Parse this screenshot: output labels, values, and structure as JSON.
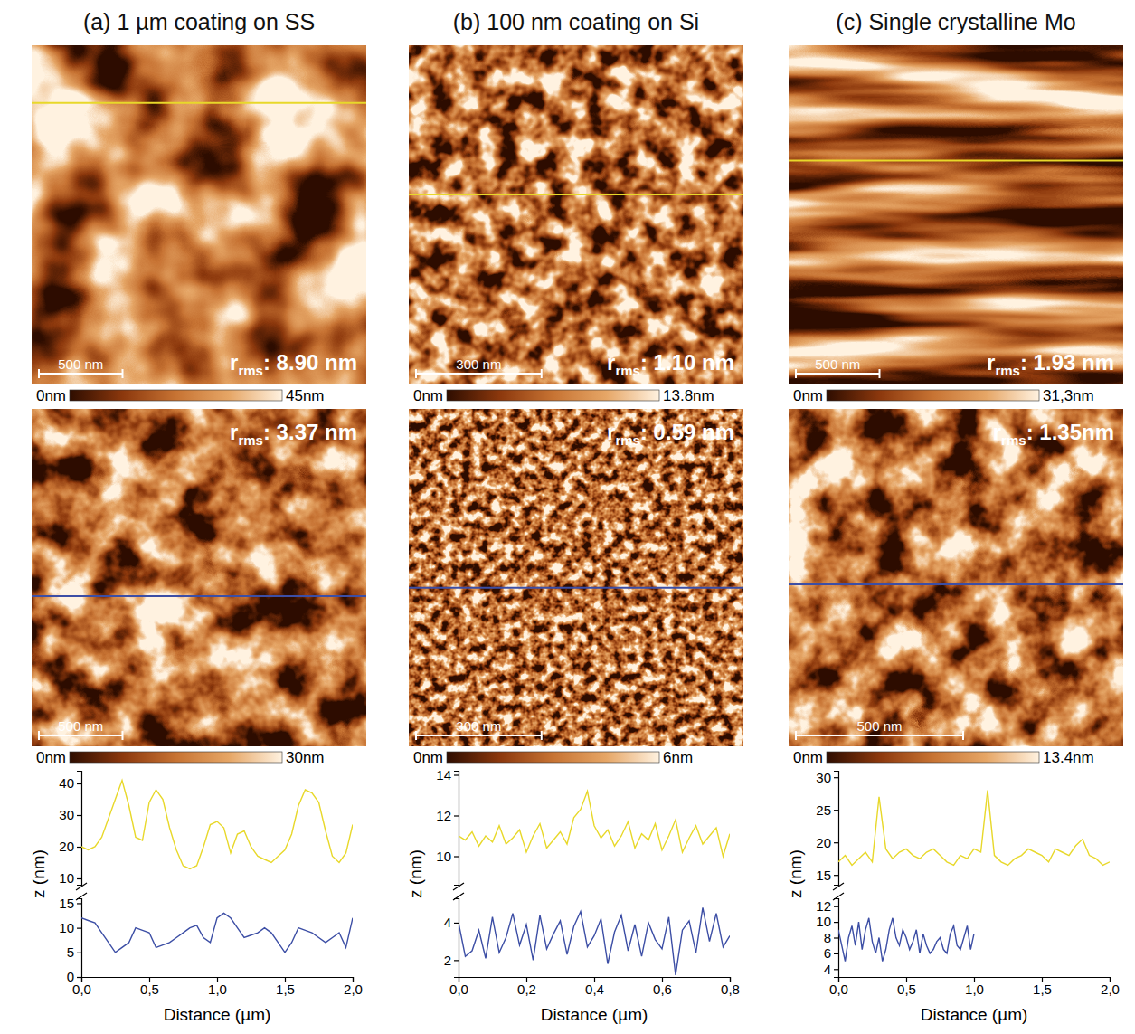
{
  "chart_data": [
    {
      "type": "line",
      "title": "(a) 1 µm coating on SS",
      "images": [
        {
          "xlim": [
            0,
            2000
          ],
          "scale_bar": {
            "value": 500,
            "label": "500 nm"
          },
          "rms_symbol": "r",
          "rms_subscript": "rms",
          "rms_text": ": 8.90 nm",
          "colorbar": {
            "range": [
              0,
              45
            ],
            "ticks": [
              {
                "value": 0,
                "label": "0nm"
              },
              {
                "value": 45,
                "label": "45nm"
              }
            ]
          }
        },
        {
          "xlim": [
            0,
            2000
          ],
          "scale_bar": {
            "value": 500,
            "label": "500 nm"
          },
          "rms_symbol": "r",
          "rms_subscript": "rms",
          "rms_text": ": 3.37 nm",
          "colorbar": {
            "range": [
              0,
              30
            ],
            "ticks": [
              {
                "value": 0,
                "label": "0nm"
              },
              {
                "value": 30,
                "label": "30nm"
              }
            ]
          }
        }
      ],
      "x_label": "Distance (µm)",
      "y_label": "z (nm)",
      "xlim": [
        0,
        2
      ],
      "xticks": [
        {
          "value": 0,
          "label": "0,0"
        },
        {
          "value": 0.5,
          "label": "0,5"
        },
        {
          "value": 1,
          "label": "1,0"
        },
        {
          "value": 1.5,
          "label": "1,5"
        },
        {
          "value": 2,
          "label": "2,0"
        }
      ],
      "ylim": [
        0,
        16
      ],
      "yticks": [
        0,
        5,
        10,
        15
      ],
      "y2lim": [
        8,
        44
      ],
      "y2ticks": [
        10,
        20,
        30,
        40
      ],
      "series": [
        {
          "color": "#e8d82a",
          "axis": "y2",
          "x": [
            0,
            0.05,
            0.1,
            0.15,
            0.2,
            0.25,
            0.3,
            0.35,
            0.4,
            0.45,
            0.5,
            0.55,
            0.6,
            0.65,
            0.7,
            0.75,
            0.8,
            0.85,
            0.9,
            0.95,
            1,
            1.05,
            1.1,
            1.15,
            1.2,
            1.25,
            1.3,
            1.35,
            1.4,
            1.45,
            1.5,
            1.55,
            1.6,
            1.65,
            1.7,
            1.75,
            1.8,
            1.85,
            1.9,
            1.95,
            2
          ],
          "values": [
            20,
            19,
            20,
            23,
            29,
            35,
            41,
            33,
            23,
            22,
            34,
            38,
            35,
            26,
            19,
            14,
            13,
            14,
            20,
            27,
            28,
            26,
            18,
            24,
            25,
            20,
            17,
            16,
            15,
            17,
            19,
            24,
            33,
            38,
            37,
            34,
            25,
            17,
            15,
            18,
            27
          ]
        },
        {
          "color": "#3c4ea5",
          "x": [
            0,
            0.05,
            0.1,
            0.15,
            0.2,
            0.25,
            0.3,
            0.35,
            0.4,
            0.45,
            0.5,
            0.55,
            0.6,
            0.65,
            0.7,
            0.75,
            0.8,
            0.85,
            0.9,
            0.95,
            1,
            1.05,
            1.1,
            1.15,
            1.2,
            1.25,
            1.3,
            1.35,
            1.4,
            1.45,
            1.5,
            1.55,
            1.6,
            1.65,
            1.7,
            1.75,
            1.8,
            1.85,
            1.9,
            1.95,
            2
          ],
          "values": [
            12,
            11.5,
            11,
            9,
            7,
            5,
            6,
            7,
            10,
            9.5,
            9,
            6,
            6.5,
            7,
            8,
            9,
            10,
            10.5,
            8,
            7,
            12,
            13,
            12,
            10,
            8,
            8.5,
            9,
            10,
            9,
            7,
            5,
            7,
            10,
            9.5,
            9,
            8,
            7,
            8,
            9,
            6,
            12
          ]
        }
      ]
    },
    {
      "type": "line",
      "title": "(b) 100 nm coating on Si",
      "images": [
        {
          "xlim": [
            0,
            800
          ],
          "scale_bar": {
            "value": 300,
            "label": "300 nm"
          },
          "rms_symbol": "r",
          "rms_subscript": "rms",
          "rms_text": ": 1.10 nm",
          "colorbar": {
            "range": [
              0,
              13.8
            ],
            "ticks": [
              {
                "value": 0,
                "label": "0nm"
              },
              {
                "value": 13.8,
                "label": "13.8nm"
              }
            ]
          }
        },
        {
          "xlim": [
            0,
            800
          ],
          "scale_bar": {
            "value": 300,
            "label": "300 nm"
          },
          "rms_symbol": "r",
          "rms_subscript": "rms",
          "rms_text": ": 0.59 nm",
          "colorbar": {
            "range": [
              0,
              6
            ],
            "ticks": [
              {
                "value": 0,
                "label": "0nm"
              },
              {
                "value": 6,
                "label": "6nm"
              }
            ]
          }
        }
      ],
      "x_label": "Distance (µm)",
      "y_label": "z (nm)",
      "xlim": [
        0,
        0.8
      ],
      "xticks": [
        {
          "value": 0,
          "label": "0,0"
        },
        {
          "value": 0.2,
          "label": "0,2"
        },
        {
          "value": 0.4,
          "label": "0,4"
        },
        {
          "value": 0.6,
          "label": "0,6"
        },
        {
          "value": 0.8,
          "label": "0,8"
        }
      ],
      "ylim": [
        1.1,
        5.3
      ],
      "yticks": [
        2,
        4
      ],
      "y2lim": [
        8.6,
        14.2
      ],
      "y2ticks": [
        10,
        12,
        14
      ],
      "series": [
        {
          "color": "#e8d82a",
          "axis": "y2",
          "x": [
            0,
            0.02,
            0.04,
            0.06,
            0.08,
            0.1,
            0.12,
            0.14,
            0.16,
            0.18,
            0.2,
            0.22,
            0.24,
            0.26,
            0.28,
            0.3,
            0.32,
            0.34,
            0.36,
            0.38,
            0.4,
            0.42,
            0.44,
            0.46,
            0.48,
            0.5,
            0.52,
            0.54,
            0.56,
            0.58,
            0.6,
            0.62,
            0.64,
            0.66,
            0.68,
            0.7,
            0.72,
            0.74,
            0.76,
            0.78,
            0.8
          ],
          "values": [
            11,
            10.8,
            11.2,
            10.5,
            11,
            10.7,
            11.5,
            10.6,
            10.9,
            11.3,
            10.2,
            11,
            11.6,
            10.4,
            10.8,
            11.2,
            10.6,
            11.9,
            12.3,
            13.2,
            11.5,
            10.9,
            11.3,
            10.5,
            11,
            11.7,
            10.4,
            11.1,
            10.8,
            11.6,
            10.3,
            11,
            11.8,
            10.2,
            10.9,
            11.5,
            10.6,
            11,
            11.4,
            10,
            11.1
          ]
        },
        {
          "color": "#3c4ea5",
          "x": [
            0,
            0.02,
            0.04,
            0.06,
            0.08,
            0.1,
            0.12,
            0.14,
            0.16,
            0.18,
            0.2,
            0.22,
            0.24,
            0.26,
            0.28,
            0.3,
            0.32,
            0.34,
            0.36,
            0.38,
            0.4,
            0.42,
            0.44,
            0.46,
            0.48,
            0.5,
            0.52,
            0.54,
            0.56,
            0.58,
            0.6,
            0.62,
            0.64,
            0.66,
            0.68,
            0.7,
            0.72,
            0.74,
            0.76,
            0.78,
            0.8
          ],
          "values": [
            4,
            2.2,
            2.5,
            3.6,
            2.1,
            4.3,
            2.4,
            3.2,
            4.5,
            2.8,
            3.9,
            2,
            4.4,
            2.6,
            3.4,
            4.1,
            2.3,
            3.8,
            4.6,
            2.7,
            3.3,
            4.2,
            1.8,
            3.5,
            4.4,
            2.5,
            3.9,
            2.2,
            4,
            3.1,
            2.6,
            4.3,
            1.2,
            3.6,
            4.1,
            2.4,
            4.8,
            3,
            4.5,
            2.7,
            3.3
          ]
        }
      ]
    },
    {
      "type": "line",
      "title": "(c) Single crystalline Mo",
      "images": [
        {
          "xlim": [
            0,
            2000
          ],
          "scale_bar": {
            "value": 500,
            "label": "500 nm"
          },
          "rms_symbol": "r",
          "rms_subscript": "rms",
          "rms_text": ": 1.93 nm",
          "colorbar": {
            "range": [
              0,
              31.3
            ],
            "ticks": [
              {
                "value": 0,
                "label": "0nm"
              },
              {
                "value": 31.3,
                "label": "31,3nm"
              }
            ]
          }
        },
        {
          "xlim": [
            0,
            1000
          ],
          "scale_bar": {
            "value": 500,
            "label": "500 nm"
          },
          "rms_symbol": "r",
          "rms_subscript": "rms",
          "rms_text": ": 1.35nm",
          "colorbar": {
            "range": [
              0,
              13.4
            ],
            "ticks": [
              {
                "value": 0,
                "label": "0nm"
              },
              {
                "value": 13.4,
                "label": "13.4nm"
              }
            ]
          }
        }
      ],
      "x_label": "Distance (µm)",
      "y_label": "z (nm)",
      "xlim": [
        0,
        2
      ],
      "xticks": [
        {
          "value": 0,
          "label": "0,0"
        },
        {
          "value": 0.5,
          "label": "0,5"
        },
        {
          "value": 1,
          "label": "1,0"
        },
        {
          "value": 1.5,
          "label": "1,5"
        },
        {
          "value": 2,
          "label": "2,0"
        }
      ],
      "ylim": [
        3,
        13
      ],
      "yticks": [
        4,
        6,
        8,
        10,
        12
      ],
      "y2lim": [
        13.5,
        31
      ],
      "y2ticks": [
        15,
        20,
        25,
        30
      ],
      "series": [
        {
          "color": "#e8d82a",
          "axis": "y2",
          "x": [
            0,
            0.05,
            0.1,
            0.15,
            0.2,
            0.25,
            0.3,
            0.35,
            0.4,
            0.45,
            0.5,
            0.55,
            0.6,
            0.65,
            0.7,
            0.75,
            0.8,
            0.85,
            0.9,
            0.95,
            1,
            1.05,
            1.1,
            1.15,
            1.2,
            1.25,
            1.3,
            1.35,
            1.4,
            1.45,
            1.5,
            1.55,
            1.6,
            1.65,
            1.7,
            1.75,
            1.8,
            1.85,
            1.9,
            1.95,
            2
          ],
          "values": [
            17,
            18,
            16.5,
            17.5,
            18.5,
            17,
            27,
            19,
            17.5,
            18.5,
            19,
            18,
            17.5,
            18.5,
            19,
            18,
            17,
            16.5,
            18,
            17.5,
            19,
            18.5,
            28,
            18,
            17,
            16.5,
            17.5,
            18,
            19,
            18.5,
            18,
            17,
            19,
            18.5,
            18,
            19.5,
            20.5,
            18,
            17.5,
            16.5,
            17
          ]
        },
        {
          "color": "#3c4ea5",
          "x": [
            0,
            0.025,
            0.05,
            0.075,
            0.1,
            0.125,
            0.15,
            0.175,
            0.2,
            0.225,
            0.25,
            0.275,
            0.3,
            0.325,
            0.35,
            0.375,
            0.4,
            0.425,
            0.45,
            0.475,
            0.5,
            0.525,
            0.55,
            0.575,
            0.6,
            0.625,
            0.65,
            0.675,
            0.7,
            0.725,
            0.75,
            0.775,
            0.8,
            0.825,
            0.85,
            0.875,
            0.9,
            0.925,
            0.95,
            0.975,
            1
          ],
          "values": [
            9,
            7,
            5,
            8,
            9.5,
            7,
            10,
            6.5,
            9,
            10.5,
            7.5,
            6,
            8,
            5,
            6.5,
            9,
            10.5,
            8,
            7,
            9,
            8,
            6.5,
            7.5,
            9,
            6,
            8.5,
            7,
            6,
            6.5,
            7.5,
            8,
            6.5,
            6,
            8.5,
            9.5,
            7,
            6.5,
            8,
            9.5,
            6.5,
            8.5
          ]
        }
      ]
    }
  ]
}
